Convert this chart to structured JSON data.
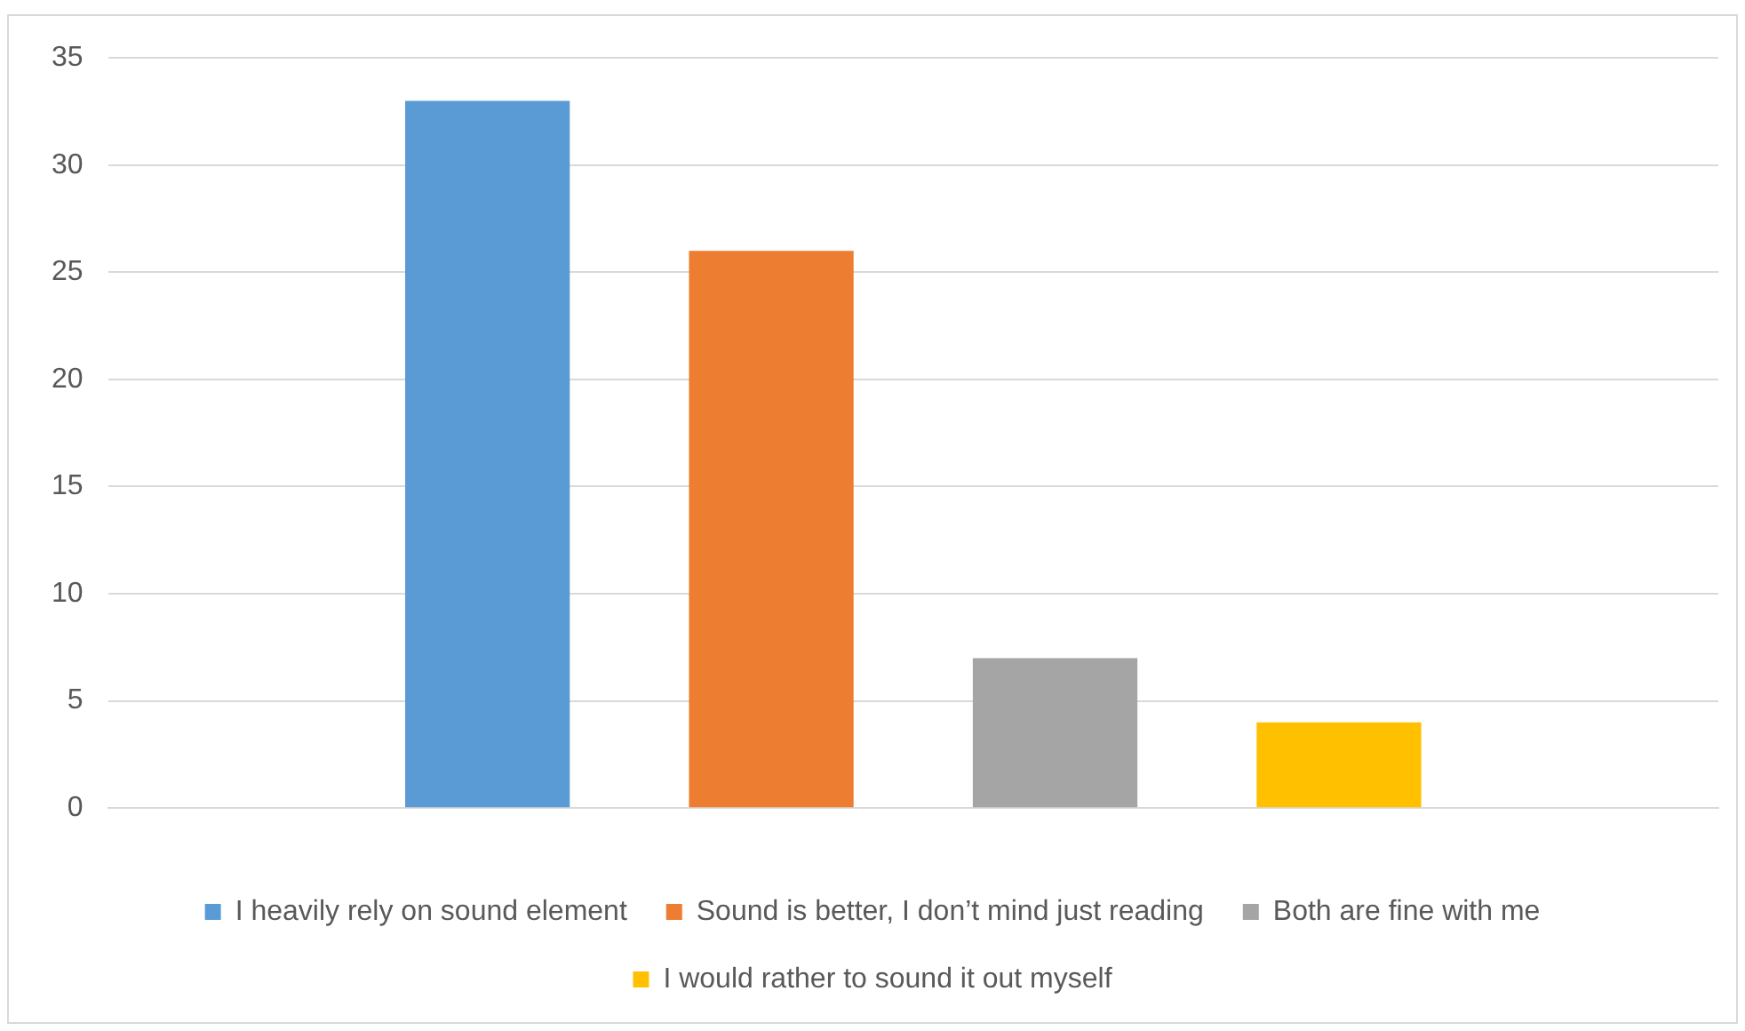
{
  "chart_data": {
    "type": "bar",
    "categories": [
      null
    ],
    "series": [
      {
        "name": "I heavily rely on sound element",
        "color": "#5b9bd5",
        "values": [
          33
        ]
      },
      {
        "name": "Sound is better, I don’t mind just reading",
        "color": "#ed7d31",
        "values": [
          26
        ]
      },
      {
        "name": "Both are fine with me",
        "color": "#a5a5a5",
        "values": [
          7
        ]
      },
      {
        "name": "I would rather to sound it out myself",
        "color": "#ffc000",
        "values": [
          4
        ]
      }
    ],
    "ylim": [
      0,
      35
    ],
    "yticks": [
      0,
      5,
      10,
      15,
      20,
      25,
      30,
      35
    ],
    "grid": "y",
    "legend": "bottom"
  }
}
